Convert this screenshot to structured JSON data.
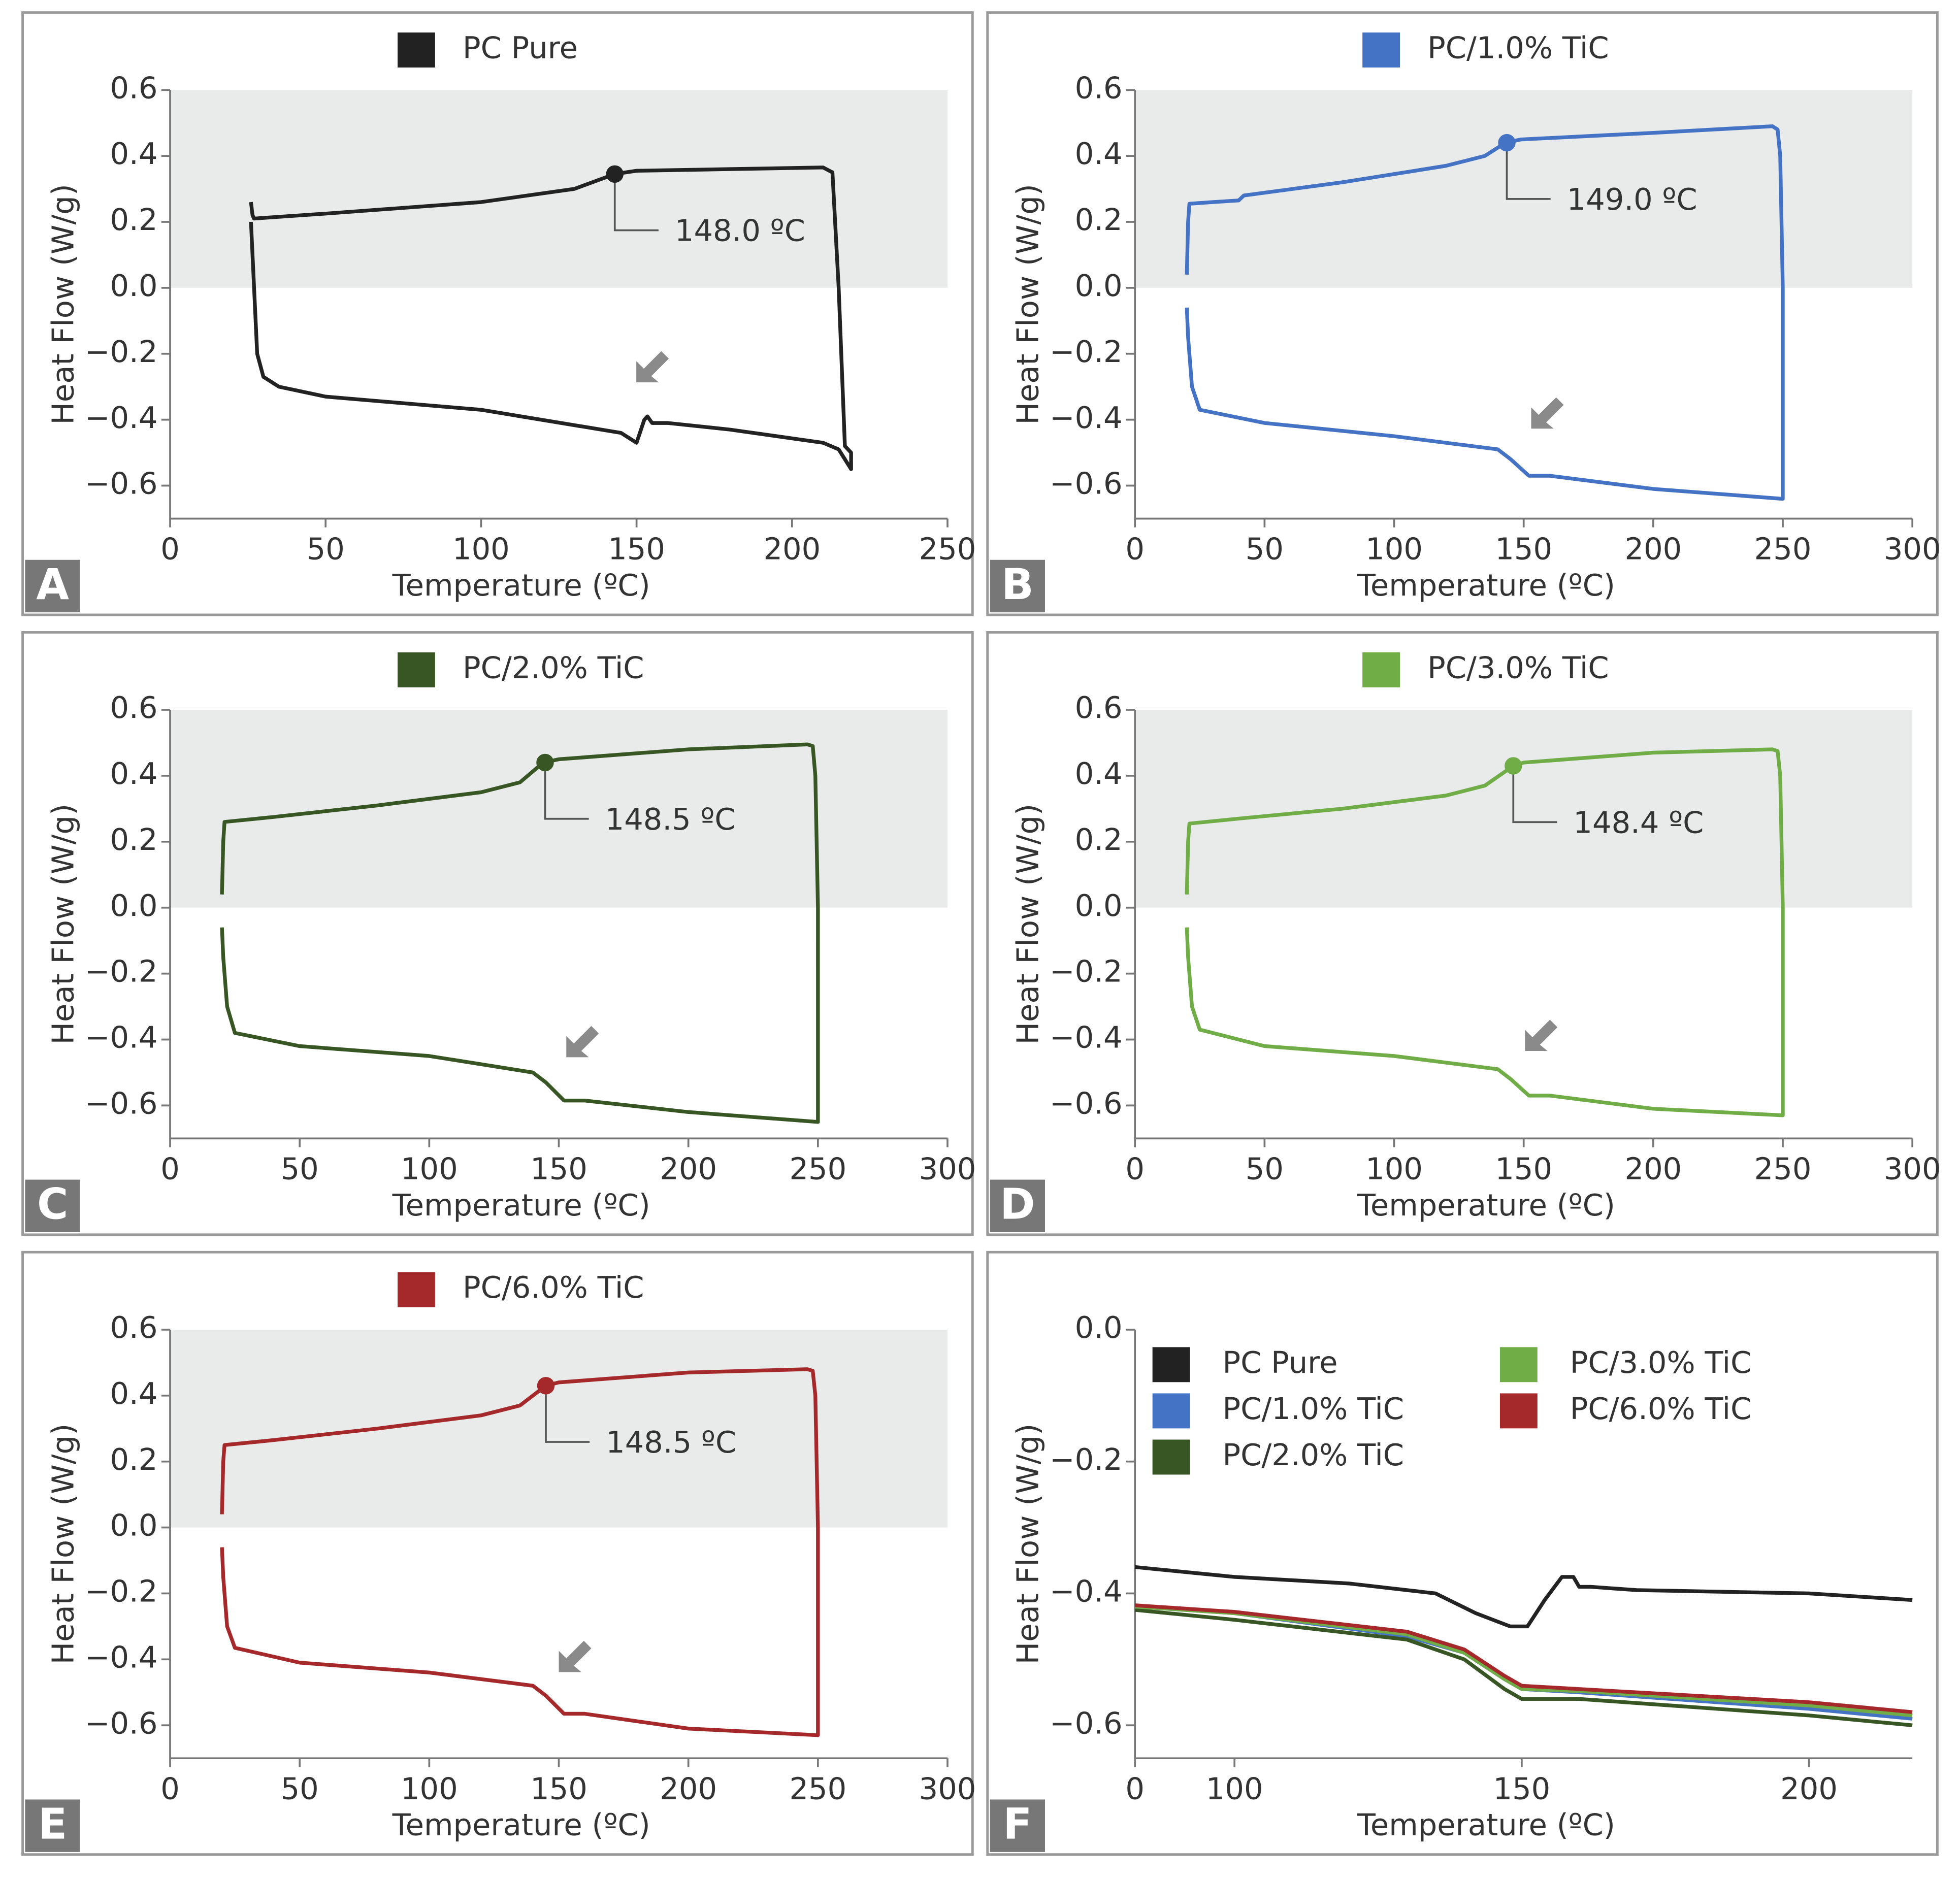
{
  "chart_data": [
    {
      "type": "line",
      "panel_label": "A",
      "xlabel": "Temperature (ºC)",
      "ylabel": "Heat Flow (W/g)",
      "xlim": [
        0,
        250
      ],
      "xticks": [
        0,
        50,
        100,
        150,
        200,
        250
      ],
      "ylim": [
        -0.7,
        0.6
      ],
      "yticks": [
        {
          "value": -0.6,
          "label": "−0.6"
        },
        {
          "value": -0.4,
          "label": "−0.4"
        },
        {
          "value": -0.2,
          "label": "−0.2"
        },
        {
          "value": 0,
          "label": "0.0"
        },
        0.2,
        0.4,
        0.6
      ],
      "shaded_region": {
        "y": [
          0,
          0.6
        ],
        "color": "#e9ebeb"
      },
      "annotation": {
        "text": "148.0 ºC",
        "x": 143,
        "y": 0.345
      },
      "series": [
        {
          "name": "PC Pure",
          "color": "#222222",
          "x": [
            26,
            26.5,
            27,
            50,
            100,
            130,
            143,
            150,
            180,
            210,
            213,
            215,
            217,
            219,
            219,
            215,
            210,
            180,
            160,
            155,
            153.5,
            152.5,
            150,
            145,
            100,
            50,
            35,
            30,
            28,
            27,
            26
          ],
          "values": [
            0.26,
            0.22,
            0.21,
            0.225,
            0.26,
            0.3,
            0.345,
            0.355,
            0.36,
            0.365,
            0.35,
            0.0,
            -0.48,
            -0.5,
            -0.55,
            -0.49,
            -0.47,
            -0.43,
            -0.41,
            -0.41,
            -0.39,
            -0.4,
            -0.47,
            -0.44,
            -0.37,
            -0.33,
            -0.3,
            -0.27,
            -0.2,
            0.0,
            0.2
          ]
        }
      ]
    },
    {
      "type": "line",
      "panel_label": "B",
      "xlabel": "Temperature (ºC)",
      "ylabel": "Heat Flow (W/g)",
      "xlim": [
        0,
        300
      ],
      "xticks": [
        0,
        50,
        100,
        150,
        200,
        250,
        300
      ],
      "ylim": [
        -0.7,
        0.6
      ],
      "yticks": [
        {
          "value": -0.6,
          "label": "−0.6"
        },
        {
          "value": -0.4,
          "label": "−0.4"
        },
        {
          "value": -0.2,
          "label": "−0.2"
        },
        {
          "value": 0,
          "label": "0.0"
        },
        0.2,
        0.4,
        0.6
      ],
      "shaded_region": {
        "y": [
          0,
          0.6
        ],
        "color": "#e9ebeb"
      },
      "annotation": {
        "text": "149.0 ºC",
        "x": 143.5,
        "y": 0.44
      },
      "series": [
        {
          "name": "PC/1.0% TiC",
          "color": "#4472c4",
          "x": [
            20,
            20.5,
            21,
            30,
            40,
            42,
            80,
            120,
            135,
            143,
            149,
            200,
            246,
            248,
            249,
            250,
            250,
            250,
            200,
            160,
            152,
            145,
            140,
            100,
            50,
            25,
            22,
            20.5,
            20
          ],
          "values": [
            0.04,
            0.2,
            0.255,
            0.26,
            0.265,
            0.28,
            0.32,
            0.37,
            0.4,
            0.44,
            0.45,
            0.47,
            0.49,
            0.48,
            0.4,
            0.0,
            -0.2,
            -0.64,
            -0.61,
            -0.57,
            -0.57,
            -0.52,
            -0.49,
            -0.45,
            -0.41,
            -0.37,
            -0.3,
            -0.15,
            -0.06
          ]
        }
      ]
    },
    {
      "type": "line",
      "panel_label": "C",
      "xlabel": "Temperature (ºC)",
      "ylabel": "Heat Flow (W/g)",
      "xlim": [
        0,
        300
      ],
      "xticks": [
        0,
        50,
        100,
        150,
        200,
        250,
        300
      ],
      "ylim": [
        -0.7,
        0.6
      ],
      "yticks": [
        {
          "value": -0.6,
          "label": "−0.6"
        },
        {
          "value": -0.4,
          "label": "−0.4"
        },
        {
          "value": -0.2,
          "label": "−0.2"
        },
        {
          "value": 0,
          "label": "0.0"
        },
        0.2,
        0.4,
        0.6
      ],
      "shaded_region": {
        "y": [
          0,
          0.6
        ],
        "color": "#e9ebeb"
      },
      "annotation": {
        "text": "148.5 ºC",
        "x": 144.7,
        "y": 0.44
      },
      "series": [
        {
          "name": "PC/2.0% TiC",
          "color": "#375623",
          "x": [
            20,
            20.5,
            21,
            40,
            80,
            120,
            135,
            144,
            150,
            200,
            246,
            248,
            249,
            250,
            250,
            250,
            200,
            160,
            152,
            145,
            140,
            100,
            50,
            25,
            22,
            20.5,
            20
          ],
          "values": [
            0.04,
            0.2,
            0.26,
            0.275,
            0.31,
            0.35,
            0.38,
            0.44,
            0.45,
            0.48,
            0.495,
            0.49,
            0.4,
            0.0,
            -0.2,
            -0.65,
            -0.62,
            -0.585,
            -0.585,
            -0.53,
            -0.5,
            -0.45,
            -0.42,
            -0.38,
            -0.3,
            -0.15,
            -0.06
          ]
        }
      ]
    },
    {
      "type": "line",
      "panel_label": "D",
      "xlabel": "Temperature (ºC)",
      "ylabel": "Heat Flow (W/g)",
      "xlim": [
        0,
        300
      ],
      "xticks": [
        0,
        50,
        100,
        150,
        200,
        250,
        300
      ],
      "ylim": [
        -0.7,
        0.6
      ],
      "yticks": [
        {
          "value": -0.6,
          "label": "−0.6"
        },
        {
          "value": -0.4,
          "label": "−0.4"
        },
        {
          "value": -0.2,
          "label": "−0.2"
        },
        {
          "value": 0,
          "label": "0.0"
        },
        0.2,
        0.4,
        0.6
      ],
      "shaded_region": {
        "y": [
          0,
          0.6
        ],
        "color": "#e9ebeb"
      },
      "annotation": {
        "text": "148.4 ºC",
        "x": 146,
        "y": 0.43
      },
      "series": [
        {
          "name": "PC/3.0% TiC",
          "color": "#70ad47",
          "x": [
            20,
            20.5,
            21,
            40,
            80,
            120,
            135,
            146,
            150,
            200,
            246,
            248,
            249,
            250,
            250,
            250,
            200,
            160,
            152,
            145,
            140,
            100,
            50,
            25,
            22,
            20.5,
            20
          ],
          "values": [
            0.04,
            0.2,
            0.255,
            0.27,
            0.3,
            0.34,
            0.37,
            0.43,
            0.44,
            0.47,
            0.48,
            0.475,
            0.4,
            0.0,
            -0.2,
            -0.63,
            -0.61,
            -0.57,
            -0.57,
            -0.52,
            -0.49,
            -0.45,
            -0.42,
            -0.37,
            -0.3,
            -0.15,
            -0.06
          ]
        }
      ]
    },
    {
      "type": "line",
      "panel_label": "E",
      "xlabel": "Temperature (ºC)",
      "ylabel": "Heat Flow (W/g)",
      "xlim": [
        0,
        300
      ],
      "xticks": [
        0,
        50,
        100,
        150,
        200,
        250,
        300
      ],
      "ylim": [
        -0.7,
        0.6
      ],
      "yticks": [
        {
          "value": -0.6,
          "label": "−0.6"
        },
        {
          "value": -0.4,
          "label": "−0.4"
        },
        {
          "value": -0.2,
          "label": "−0.2"
        },
        {
          "value": 0,
          "label": "0.0"
        },
        0.2,
        0.4,
        0.6
      ],
      "shaded_region": {
        "y": [
          0,
          0.6
        ],
        "color": "#e9ebeb"
      },
      "annotation": {
        "text": "148.5 ºC",
        "x": 145,
        "y": 0.43
      },
      "series": [
        {
          "name": "PC/6.0% TiC",
          "color": "#a5282a",
          "x": [
            20,
            20.5,
            21,
            40,
            80,
            120,
            135,
            145,
            150,
            200,
            246,
            248,
            249,
            250,
            250,
            250,
            200,
            160,
            152,
            145,
            140,
            100,
            50,
            25,
            22,
            20.5,
            20
          ],
          "values": [
            0.04,
            0.2,
            0.25,
            0.265,
            0.3,
            0.34,
            0.37,
            0.43,
            0.44,
            0.47,
            0.48,
            0.475,
            0.4,
            0.0,
            -0.2,
            -0.63,
            -0.61,
            -0.565,
            -0.565,
            -0.51,
            -0.48,
            -0.44,
            -0.41,
            -0.365,
            -0.3,
            -0.15,
            -0.06
          ]
        }
      ]
    },
    {
      "type": "line",
      "panel_label": "F",
      "xlabel": "Temperature (ºC)",
      "ylabel": "Heat Flow (W/g)",
      "xlim": [
        0,
        218
      ],
      "xticks": [
        0,
        100,
        150,
        200
      ],
      "xscale": "broken",
      "ylim": [
        -0.65,
        0
      ],
      "yticks": [
        {
          "value": -0.6,
          "label": "−0.6"
        },
        {
          "value": -0.4,
          "label": "−0.4"
        },
        {
          "value": -0.2,
          "label": "−0.2"
        },
        {
          "value": 0,
          "label": "0.0"
        }
      ],
      "series": [
        {
          "name": "PC Pure",
          "color": "#222222",
          "x": [
            0,
            100,
            120,
            135,
            142,
            148,
            151,
            154,
            157,
            159,
            160,
            162,
            170,
            200,
            218
          ],
          "values": [
            -0.36,
            -0.375,
            -0.385,
            -0.4,
            -0.43,
            -0.45,
            -0.45,
            -0.41,
            -0.375,
            -0.375,
            -0.39,
            -0.39,
            -0.395,
            -0.4,
            -0.41
          ]
        },
        {
          "name": "PC/1.0% TiC",
          "color": "#4472c4",
          "x": [
            0,
            100,
            130,
            140,
            147,
            150,
            160,
            200,
            218
          ],
          "values": [
            -0.42,
            -0.43,
            -0.465,
            -0.49,
            -0.53,
            -0.545,
            -0.55,
            -0.575,
            -0.59
          ]
        },
        {
          "name": "PC/2.0% TiC",
          "color": "#375623",
          "x": [
            0,
            100,
            130,
            140,
            147,
            150,
            160,
            200,
            218
          ],
          "values": [
            -0.425,
            -0.44,
            -0.47,
            -0.5,
            -0.545,
            -0.56,
            -0.56,
            -0.585,
            -0.6
          ]
        },
        {
          "name": "PC/3.0% TiC",
          "color": "#70ad47",
          "x": [
            0,
            100,
            130,
            140,
            147,
            150,
            160,
            200,
            218
          ],
          "values": [
            -0.42,
            -0.43,
            -0.462,
            -0.49,
            -0.53,
            -0.545,
            -0.548,
            -0.57,
            -0.585
          ]
        },
        {
          "name": "PC/6.0% TiC",
          "color": "#a5282a",
          "x": [
            0,
            100,
            130,
            140,
            147,
            150,
            160,
            200,
            218
          ],
          "values": [
            -0.418,
            -0.428,
            -0.458,
            -0.485,
            -0.525,
            -0.54,
            -0.545,
            -0.565,
            -0.58
          ]
        }
      ]
    }
  ]
}
